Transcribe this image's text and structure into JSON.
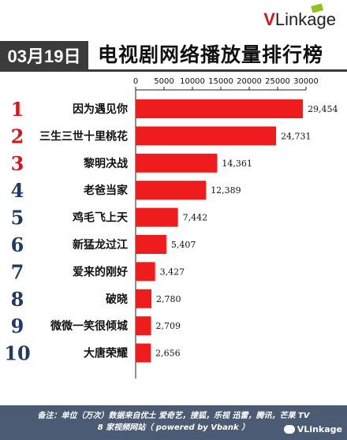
{
  "header": {
    "logo_v": "V",
    "logo_rest": "Linkage",
    "date": "03月19日",
    "title": "电视剧网络播放量排行榜"
  },
  "footer": {
    "line1": "备注：单位（万次）数据来自优土 爱奇艺，搜狐，乐视 迅雷，腾讯，芒果 TV",
    "line2": "8 家视频网站（ powered by Vbank ）",
    "watermark": "VLinkage"
  },
  "colors": {
    "bar": "#ee1c1c",
    "rank_top": "#d9141c",
    "rank_rest": "#1f3a63",
    "header_bg": "#3b3b3b",
    "footer_bg": "#4a5b73"
  },
  "chart_data": {
    "type": "bar",
    "orientation": "horizontal",
    "xlim": [
      0,
      30000
    ],
    "xticks": [
      "0",
      "5000",
      "10000",
      "15000",
      "20000",
      "25000",
      "30000"
    ],
    "xtick_values": [
      0,
      5000,
      10000,
      15000,
      20000,
      25000,
      30000
    ],
    "grid": false,
    "ranks": [
      "1",
      "2",
      "3",
      "4",
      "5",
      "6",
      "7",
      "8",
      "9",
      "10"
    ],
    "categories": [
      "因为遇见你",
      "三生三世十里桃花",
      "黎明决战",
      "老爸当家",
      "鸡毛飞上天",
      "新猛龙过江",
      "爱来的刚好",
      "破晓",
      "微微一笑很倾城",
      "大唐荣耀"
    ],
    "values": [
      29454,
      24731,
      14361,
      12389,
      7442,
      5407,
      3427,
      2780,
      2709,
      2656
    ],
    "value_labels": [
      "29,454",
      "24,731",
      "14,361",
      "12,389",
      "7,442",
      "5,407",
      "3,427",
      "2,780",
      "2,709",
      "2,656"
    ]
  }
}
